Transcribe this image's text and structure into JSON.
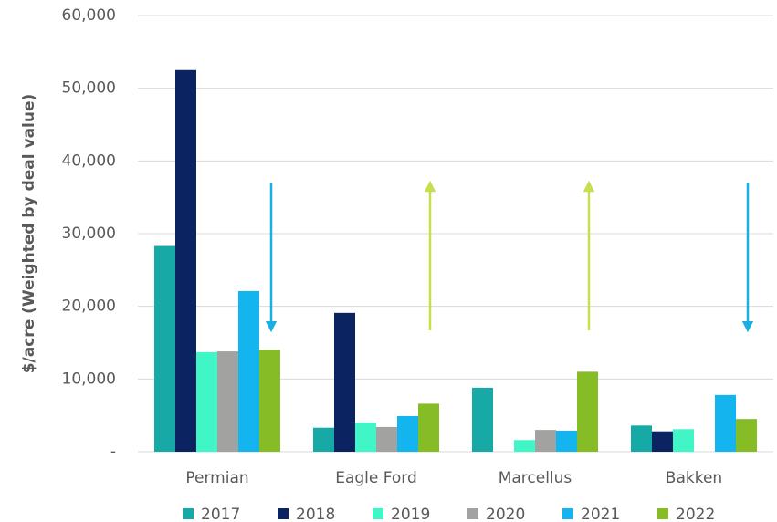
{
  "chart_data": {
    "type": "bar",
    "y_label": "$/acre (Weighted by deal value)",
    "categories": [
      "Permian",
      "Eagle Ford",
      "Marcellus",
      "Bakken"
    ],
    "series": [
      {
        "name": "2017",
        "color": "#17a9a5",
        "values": [
          28300,
          3300,
          8800,
          3600
        ]
      },
      {
        "name": "2018",
        "color": "#0b2461",
        "values": [
          52500,
          19100,
          null,
          2800
        ]
      },
      {
        "name": "2019",
        "color": "#40f5c6",
        "values": [
          13700,
          4000,
          1600,
          3100
        ]
      },
      {
        "name": "2020",
        "color": "#a2a3a0",
        "values": [
          13800,
          3400,
          3000,
          null
        ]
      },
      {
        "name": "2021",
        "color": "#14b5ee",
        "values": [
          22100,
          4900,
          2900,
          7800
        ]
      },
      {
        "name": "2022",
        "color": "#86bc25",
        "values": [
          14000,
          6600,
          11000,
          4500
        ]
      }
    ],
    "ylim": [
      0,
      60000
    ],
    "yticks": [
      {
        "value": 0,
        "label": "-"
      },
      {
        "value": 10000,
        "label": "10,000"
      },
      {
        "value": 20000,
        "label": "20,000"
      },
      {
        "value": 30000,
        "label": "30,000"
      },
      {
        "value": 40000,
        "label": "40,000"
      },
      {
        "value": 50000,
        "label": "50,000"
      },
      {
        "value": 60000,
        "label": "60,000"
      }
    ],
    "grid": true,
    "legend": "bottom"
  }
}
